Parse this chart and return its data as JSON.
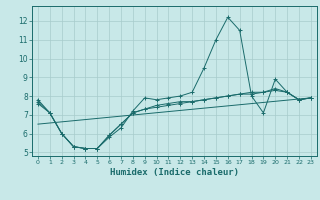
{
  "xlabel": "Humidex (Indice chaleur)",
  "bg_color": "#c8e8e8",
  "grid_color": "#a8cccc",
  "line_color": "#1a6b6b",
  "xlim": [
    -0.5,
    23.5
  ],
  "ylim": [
    4.8,
    12.8
  ],
  "yticks": [
    5,
    6,
    7,
    8,
    9,
    10,
    11,
    12
  ],
  "xticks": [
    0,
    1,
    2,
    3,
    4,
    5,
    6,
    7,
    8,
    9,
    10,
    11,
    12,
    13,
    14,
    15,
    16,
    17,
    18,
    19,
    20,
    21,
    22,
    23
  ],
  "series1_x": [
    0,
    1,
    2,
    3,
    4,
    5,
    6,
    7,
    8,
    9,
    10,
    11,
    12,
    13,
    14,
    15,
    16,
    17,
    18,
    19,
    20,
    21,
    22,
    23
  ],
  "series1_y": [
    7.8,
    7.1,
    6.0,
    5.3,
    5.2,
    5.2,
    5.8,
    6.3,
    7.2,
    7.9,
    7.8,
    7.9,
    8.0,
    8.2,
    9.5,
    11.0,
    12.2,
    11.5,
    8.0,
    7.1,
    8.9,
    8.2,
    7.8,
    7.9
  ],
  "series2_x": [
    0,
    1,
    2,
    3,
    4,
    5,
    6,
    7,
    8,
    9,
    10,
    11,
    12,
    13,
    14,
    15,
    16,
    17,
    18,
    19,
    20,
    21,
    22,
    23
  ],
  "series2_y": [
    7.6,
    7.1,
    6.0,
    5.3,
    5.2,
    5.2,
    5.9,
    6.5,
    7.1,
    7.3,
    7.4,
    7.5,
    7.6,
    7.7,
    7.8,
    7.9,
    8.0,
    8.1,
    8.2,
    8.2,
    8.3,
    8.2,
    7.8,
    7.9
  ],
  "series3_x": [
    0,
    1,
    2,
    3,
    4,
    5,
    6,
    7,
    8,
    9,
    10,
    11,
    12,
    13,
    14,
    15,
    16,
    17,
    18,
    19,
    20,
    21,
    22,
    23
  ],
  "series3_y": [
    7.7,
    7.1,
    6.0,
    5.3,
    5.2,
    5.2,
    5.9,
    6.5,
    7.1,
    7.3,
    7.5,
    7.6,
    7.7,
    7.7,
    7.8,
    7.9,
    8.0,
    8.1,
    8.1,
    8.2,
    8.4,
    8.2,
    7.8,
    7.9
  ],
  "series4_x": [
    0,
    23
  ],
  "series4_y": [
    6.5,
    7.9
  ]
}
